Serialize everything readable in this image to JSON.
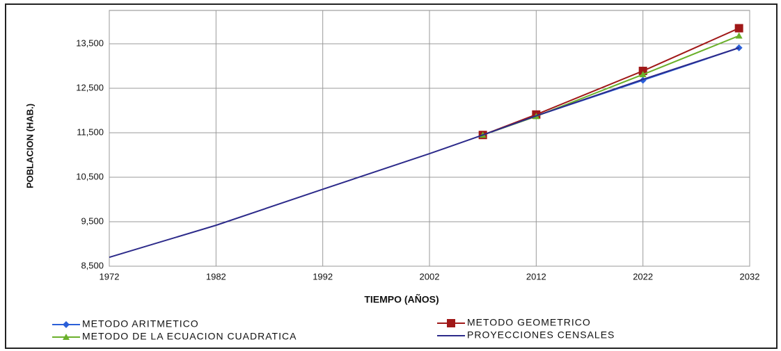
{
  "chart_data": {
    "type": "line",
    "xlabel": "TIEMPO (AÑOS)",
    "ylabel": "POBLACION (HAB.)",
    "xlim": [
      1972,
      2032
    ],
    "xticks": [
      1972,
      1982,
      1992,
      2002,
      2012,
      2022,
      2032
    ],
    "ylim": [
      8500,
      14250
    ],
    "yticks": [
      {
        "value": 8500,
        "label": "8,500"
      },
      {
        "value": 9500,
        "label": "9,500"
      },
      {
        "value": 10500,
        "label": "10,500"
      },
      {
        "value": 11500,
        "label": "11,500"
      },
      {
        "value": 12500,
        "label": "12,500"
      },
      {
        "value": 13500,
        "label": "13,500"
      }
    ],
    "grid": true,
    "series": [
      {
        "name": "METODO ARITMETICO",
        "color": "#2a5fd8",
        "marker": "diamond",
        "x": [
          2007,
          2012,
          2022,
          2031
        ],
        "values": [
          11450,
          11880,
          12680,
          13410
        ]
      },
      {
        "name": "METODO GEOMETRICO",
        "color": "#a01818",
        "marker": "square",
        "x": [
          2007,
          2012,
          2022,
          2031
        ],
        "values": [
          11450,
          11910,
          12890,
          13850
        ]
      },
      {
        "name": "METODO DE LA ECUACION CUADRATICA",
        "color": "#6ab02a",
        "marker": "triangle",
        "x": [
          2007,
          2012,
          2022,
          2031
        ],
        "values": [
          11450,
          11870,
          12810,
          13680
        ]
      },
      {
        "name": "PROYECCIONES CENSALES",
        "color": "#2c2a8a",
        "marker": "none",
        "x": [
          1972,
          1982,
          1992,
          2002,
          2007,
          2012,
          2022,
          2031
        ],
        "values": [
          8700,
          9420,
          10230,
          11030,
          11450,
          11880,
          12700,
          13410
        ]
      }
    ]
  }
}
